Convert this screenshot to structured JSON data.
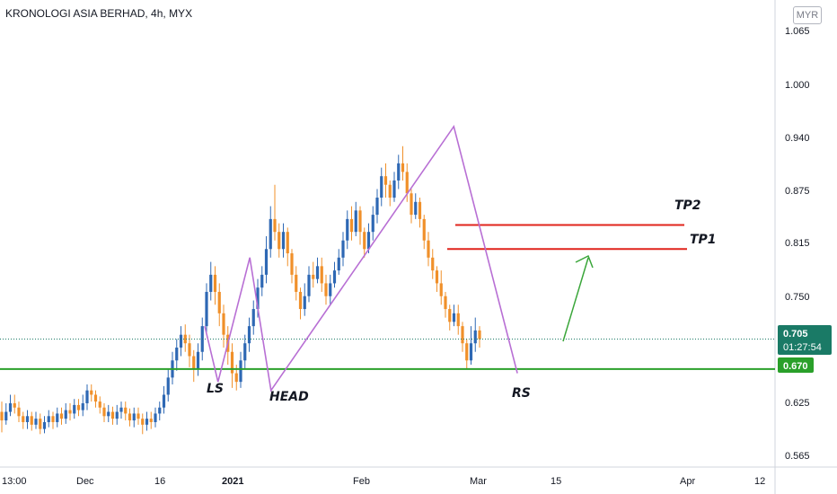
{
  "header": {
    "title": "KRONOLOGI ASIA BERHAD, 4h, MYX",
    "currency": "MYR"
  },
  "chart_data": {
    "type": "candlestick",
    "y_ticks": [
      "1.065",
      "1.000",
      "0.940",
      "0.875",
      "0.815",
      "0.750",
      "0.625",
      "0.565"
    ],
    "x_ticks": [
      "13:00",
      "Dec",
      "16",
      "2021",
      "Feb",
      "Mar",
      "15",
      "Apr",
      "12"
    ],
    "price_labels": {
      "last": "0.705",
      "countdown": "01:27:54",
      "support": "0.670"
    },
    "annotations": {
      "ls": "LS",
      "head": "HEAD",
      "rs": "RS",
      "tp1": "TP1",
      "tp2": "TP2"
    },
    "levels": {
      "support": 0.67,
      "tp1": 0.81,
      "tp2": 0.838,
      "last": 0.705
    },
    "colors": {
      "up": "#2e68b4",
      "down": "#f0902a",
      "pattern": "#b86fd4",
      "support": "#2aa02a",
      "target": "#e0241c",
      "arrow": "#3aa63a"
    },
    "pattern_points": [
      {
        "d": 0,
        "p": 0.72
      },
      {
        "d": 5,
        "p": 0.655
      },
      {
        "d": 17,
        "p": 0.8
      },
      {
        "d": 25,
        "p": 0.645
      },
      {
        "d": 94,
        "p": 0.953
      },
      {
        "d": 118,
        "p": 0.665
      }
    ],
    "candles": [
      [
        0.62,
        0.61,
        0.632,
        0.596
      ],
      [
        0.61,
        0.62,
        0.63,
        0.605
      ],
      [
        0.62,
        0.63,
        0.64,
        0.615
      ],
      [
        0.63,
        0.625,
        0.64,
        0.618
      ],
      [
        0.625,
        0.615,
        0.632,
        0.608
      ],
      [
        0.615,
        0.608,
        0.62,
        0.6
      ],
      [
        0.608,
        0.615,
        0.622,
        0.6
      ],
      [
        0.615,
        0.605,
        0.62,
        0.598
      ],
      [
        0.605,
        0.612,
        0.62,
        0.6
      ],
      [
        0.612,
        0.6,
        0.618,
        0.594
      ],
      [
        0.6,
        0.608,
        0.615,
        0.595
      ],
      [
        0.608,
        0.615,
        0.622,
        0.602
      ],
      [
        0.615,
        0.608,
        0.62,
        0.6
      ],
      [
        0.608,
        0.618,
        0.625,
        0.602
      ],
      [
        0.618,
        0.612,
        0.625,
        0.605
      ],
      [
        0.612,
        0.622,
        0.63,
        0.606
      ],
      [
        0.622,
        0.618,
        0.63,
        0.61
      ],
      [
        0.618,
        0.628,
        0.635,
        0.612
      ],
      [
        0.628,
        0.622,
        0.635,
        0.615
      ],
      [
        0.622,
        0.63,
        0.64,
        0.615
      ],
      [
        0.63,
        0.645,
        0.652,
        0.622
      ],
      [
        0.645,
        0.64,
        0.652,
        0.632
      ],
      [
        0.64,
        0.632,
        0.645,
        0.625
      ],
      [
        0.632,
        0.625,
        0.638,
        0.618
      ],
      [
        0.625,
        0.615,
        0.63,
        0.608
      ],
      [
        0.615,
        0.62,
        0.628,
        0.608
      ],
      [
        0.62,
        0.612,
        0.626,
        0.605
      ],
      [
        0.612,
        0.62,
        0.628,
        0.605
      ],
      [
        0.62,
        0.625,
        0.632,
        0.612
      ],
      [
        0.625,
        0.618,
        0.632,
        0.61
      ],
      [
        0.618,
        0.61,
        0.624,
        0.603
      ],
      [
        0.61,
        0.618,
        0.625,
        0.602
      ],
      [
        0.618,
        0.612,
        0.625,
        0.605
      ],
      [
        0.612,
        0.605,
        0.618,
        0.594
      ],
      [
        0.605,
        0.612,
        0.62,
        0.598
      ],
      [
        0.612,
        0.608,
        0.62,
        0.6
      ],
      [
        0.608,
        0.618,
        0.625,
        0.602
      ],
      [
        0.618,
        0.625,
        0.632,
        0.61
      ],
      [
        0.625,
        0.64,
        0.65,
        0.618
      ],
      [
        0.64,
        0.66,
        0.67,
        0.632
      ],
      [
        0.66,
        0.68,
        0.69,
        0.652
      ],
      [
        0.68,
        0.695,
        0.705,
        0.668
      ],
      [
        0.695,
        0.71,
        0.72,
        0.685
      ],
      [
        0.71,
        0.7,
        0.722,
        0.69
      ],
      [
        0.7,
        0.685,
        0.71,
        0.672
      ],
      [
        0.685,
        0.67,
        0.692,
        0.655
      ],
      [
        0.67,
        0.69,
        0.7,
        0.662
      ],
      [
        0.69,
        0.72,
        0.73,
        0.68
      ],
      [
        0.72,
        0.76,
        0.77,
        0.71
      ],
      [
        0.76,
        0.78,
        0.795,
        0.75
      ],
      [
        0.78,
        0.76,
        0.79,
        0.745
      ],
      [
        0.76,
        0.735,
        0.77,
        0.72
      ],
      [
        0.735,
        0.71,
        0.745,
        0.695
      ],
      [
        0.71,
        0.69,
        0.72,
        0.675
      ],
      [
        0.69,
        0.665,
        0.7,
        0.648
      ],
      [
        0.665,
        0.655,
        0.675,
        0.645
      ],
      [
        0.655,
        0.68,
        0.69,
        0.648
      ],
      [
        0.68,
        0.7,
        0.71,
        0.67
      ],
      [
        0.7,
        0.72,
        0.73,
        0.69
      ],
      [
        0.72,
        0.74,
        0.75,
        0.71
      ],
      [
        0.74,
        0.765,
        0.775,
        0.73
      ],
      [
        0.765,
        0.78,
        0.79,
        0.755
      ],
      [
        0.78,
        0.81,
        0.825,
        0.77
      ],
      [
        0.81,
        0.845,
        0.86,
        0.8
      ],
      [
        0.845,
        0.83,
        0.885,
        0.82
      ],
      [
        0.83,
        0.81,
        0.84,
        0.8
      ],
      [
        0.81,
        0.83,
        0.84,
        0.8
      ],
      [
        0.83,
        0.805,
        0.835,
        0.79
      ],
      [
        0.805,
        0.78,
        0.81,
        0.77
      ],
      [
        0.78,
        0.76,
        0.79,
        0.75
      ],
      [
        0.76,
        0.74,
        0.765,
        0.728
      ],
      [
        0.74,
        0.755,
        0.77,
        0.732
      ],
      [
        0.755,
        0.78,
        0.79,
        0.748
      ],
      [
        0.78,
        0.775,
        0.795,
        0.765
      ],
      [
        0.775,
        0.79,
        0.8,
        0.77
      ],
      [
        0.79,
        0.77,
        0.8,
        0.76
      ],
      [
        0.77,
        0.755,
        0.78,
        0.745
      ],
      [
        0.755,
        0.77,
        0.78,
        0.745
      ],
      [
        0.77,
        0.785,
        0.795,
        0.765
      ],
      [
        0.785,
        0.8,
        0.81,
        0.78
      ],
      [
        0.8,
        0.82,
        0.83,
        0.79
      ],
      [
        0.82,
        0.845,
        0.855,
        0.81
      ],
      [
        0.845,
        0.83,
        0.86,
        0.82
      ],
      [
        0.83,
        0.855,
        0.865,
        0.825
      ],
      [
        0.855,
        0.83,
        0.86,
        0.815
      ],
      [
        0.83,
        0.81,
        0.835,
        0.8
      ],
      [
        0.81,
        0.83,
        0.84,
        0.805
      ],
      [
        0.83,
        0.85,
        0.86,
        0.82
      ],
      [
        0.85,
        0.87,
        0.88,
        0.84
      ],
      [
        0.87,
        0.895,
        0.905,
        0.86
      ],
      [
        0.895,
        0.885,
        0.91,
        0.87
      ],
      [
        0.885,
        0.87,
        0.89,
        0.86
      ],
      [
        0.87,
        0.89,
        0.9,
        0.865
      ],
      [
        0.89,
        0.91,
        0.92,
        0.88
      ],
      [
        0.91,
        0.9,
        0.93,
        0.89
      ],
      [
        0.9,
        0.875,
        0.91,
        0.865
      ],
      [
        0.875,
        0.85,
        0.88,
        0.84
      ],
      [
        0.85,
        0.865,
        0.875,
        0.845
      ],
      [
        0.865,
        0.845,
        0.87,
        0.835
      ],
      [
        0.845,
        0.82,
        0.85,
        0.81
      ],
      [
        0.82,
        0.8,
        0.83,
        0.79
      ],
      [
        0.8,
        0.785,
        0.81,
        0.775
      ],
      [
        0.785,
        0.77,
        0.79,
        0.76
      ],
      [
        0.77,
        0.755,
        0.785,
        0.745
      ],
      [
        0.755,
        0.74,
        0.76,
        0.73
      ],
      [
        0.74,
        0.725,
        0.745,
        0.715
      ],
      [
        0.725,
        0.735,
        0.745,
        0.72
      ],
      [
        0.735,
        0.72,
        0.745,
        0.71
      ],
      [
        0.72,
        0.7,
        0.725,
        0.69
      ],
      [
        0.7,
        0.68,
        0.705,
        0.67
      ],
      [
        0.68,
        0.7,
        0.72,
        0.675
      ],
      [
        0.7,
        0.715,
        0.73,
        0.69
      ],
      [
        0.715,
        0.705,
        0.72,
        0.695
      ]
    ]
  }
}
